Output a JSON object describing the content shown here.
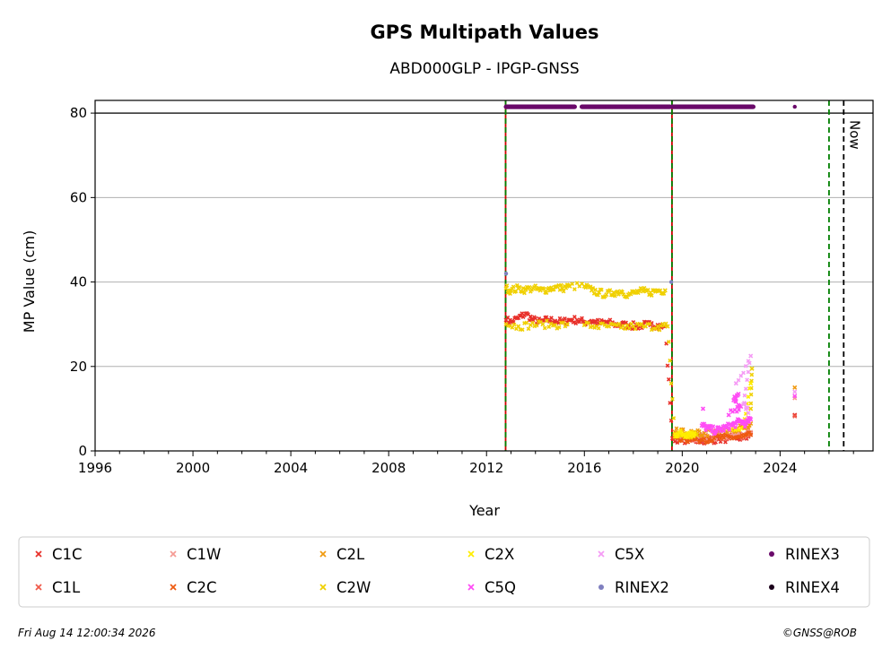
{
  "chart_data": {
    "type": "scatter",
    "title": "GPS Multipath Values",
    "subtitle": "ABD000GLP - IPGP-GNSS",
    "xlabel": "Year",
    "ylabel": "MP Value (cm)",
    "xlim": [
      1996,
      2027.8
    ],
    "ylim": [
      0,
      83
    ],
    "xticks": [
      1996,
      2000,
      2004,
      2008,
      2012,
      2016,
      2020,
      2024
    ],
    "yticks": [
      0,
      20,
      40,
      60,
      80
    ],
    "grid": "y",
    "legend_position": "bottom",
    "series": [
      {
        "name": "C1C",
        "color": "#e8302a",
        "marker": "x",
        "points": [
          [
            2012.8,
            31
          ],
          [
            2013.0,
            30.5
          ],
          [
            2013.3,
            31.5
          ],
          [
            2013.6,
            32.5
          ],
          [
            2013.9,
            31
          ],
          [
            2014.2,
            30.5
          ],
          [
            2014.5,
            31
          ],
          [
            2014.8,
            30.8
          ],
          [
            2015.1,
            30.5
          ],
          [
            2015.4,
            31
          ],
          [
            2015.7,
            31
          ],
          [
            2016.0,
            30.5
          ],
          [
            2016.3,
            30.8
          ],
          [
            2016.6,
            30.2
          ],
          [
            2016.9,
            30.5
          ],
          [
            2017.2,
            30
          ],
          [
            2017.5,
            29.8
          ],
          [
            2017.8,
            29.8
          ],
          [
            2018.1,
            29.5
          ],
          [
            2018.4,
            29.8
          ],
          [
            2018.7,
            29.8
          ],
          [
            2019.0,
            29.8
          ],
          [
            2019.3,
            29.5
          ],
          [
            2019.6,
            3
          ],
          [
            2019.9,
            2.8
          ],
          [
            2020.3,
            2.6
          ],
          [
            2020.7,
            2.5
          ],
          [
            2021.1,
            2.6
          ],
          [
            2021.5,
            2.8
          ],
          [
            2021.9,
            3
          ],
          [
            2022.3,
            3
          ],
          [
            2022.7,
            3.4
          ],
          [
            2024.6,
            8.5
          ]
        ]
      },
      {
        "name": "C1L",
        "color": "#f05a4a",
        "marker": "x",
        "points": [
          [
            2019.7,
            3.2
          ],
          [
            2020.1,
            3
          ],
          [
            2020.5,
            2.9
          ],
          [
            2020.9,
            3
          ],
          [
            2021.3,
            3.1
          ],
          [
            2021.7,
            3.3
          ],
          [
            2022.1,
            3.5
          ],
          [
            2022.5,
            3.8
          ],
          [
            2022.8,
            4.2
          ],
          [
            2024.6,
            8.2
          ]
        ]
      },
      {
        "name": "C1W",
        "color": "#f59b95",
        "marker": "x",
        "points": [
          [
            2019.7,
            3.4
          ],
          [
            2020.1,
            3.3
          ],
          [
            2020.5,
            3.2
          ],
          [
            2020.9,
            3.3
          ],
          [
            2021.3,
            3.4
          ],
          [
            2021.7,
            3.6
          ],
          [
            2022.1,
            3.8
          ],
          [
            2022.5,
            4
          ],
          [
            2022.8,
            4.5
          ],
          [
            2024.6,
            12.5
          ]
        ]
      },
      {
        "name": "C2C",
        "color": "#ee5a10",
        "marker": "x",
        "points": [
          [
            2019.7,
            3.1
          ],
          [
            2020.1,
            2.9
          ],
          [
            2020.5,
            2.8
          ],
          [
            2020.9,
            2.9
          ],
          [
            2021.3,
            3
          ],
          [
            2021.7,
            3.1
          ],
          [
            2022.1,
            3.2
          ],
          [
            2022.5,
            3.4
          ],
          [
            2022.8,
            3.8
          ]
        ]
      },
      {
        "name": "C2L",
        "color": "#f09a10",
        "marker": "x",
        "points": [
          [
            2019.7,
            4.5
          ],
          [
            2020.1,
            4.2
          ],
          [
            2020.5,
            4
          ],
          [
            2020.9,
            4.2
          ],
          [
            2021.3,
            4.4
          ],
          [
            2021.7,
            4.8
          ],
          [
            2022.1,
            5
          ],
          [
            2022.5,
            5.5
          ],
          [
            2022.8,
            6.5
          ],
          [
            2024.6,
            15
          ]
        ]
      },
      {
        "name": "C2W",
        "color": "#f0d000",
        "marker": "x",
        "points": [
          [
            2012.8,
            38.5
          ],
          [
            2013.0,
            38
          ],
          [
            2013.3,
            38.5
          ],
          [
            2013.6,
            38.2
          ],
          [
            2013.9,
            38.5
          ],
          [
            2014.2,
            38
          ],
          [
            2014.5,
            38.3
          ],
          [
            2014.8,
            38.8
          ],
          [
            2015.1,
            38.5
          ],
          [
            2015.4,
            39
          ],
          [
            2016.0,
            39
          ],
          [
            2016.3,
            38
          ],
          [
            2016.6,
            37.5
          ],
          [
            2016.9,
            37
          ],
          [
            2017.2,
            37.5
          ],
          [
            2017.5,
            37.8
          ],
          [
            2017.8,
            37
          ],
          [
            2018.1,
            37.5
          ],
          [
            2018.4,
            37.8
          ],
          [
            2018.7,
            37.5
          ],
          [
            2019.0,
            38
          ],
          [
            2019.3,
            38
          ],
          [
            2012.8,
            30
          ],
          [
            2013.3,
            29.5
          ],
          [
            2013.8,
            29.8
          ],
          [
            2014.3,
            30
          ],
          [
            2014.8,
            29.8
          ],
          [
            2015.3,
            30
          ],
          [
            2016.0,
            29.8
          ],
          [
            2016.5,
            29.5
          ],
          [
            2017.0,
            29.5
          ],
          [
            2017.5,
            29.2
          ],
          [
            2018.0,
            29.5
          ],
          [
            2018.5,
            29.5
          ],
          [
            2019.0,
            29.5
          ],
          [
            2019.4,
            29.5
          ],
          [
            2019.7,
            3.5
          ],
          [
            2020.0,
            3.8
          ],
          [
            2020.3,
            3.5
          ],
          [
            2020.6,
            3.8
          ],
          [
            2022.8,
            10
          ],
          [
            2022.85,
            19.5
          ]
        ]
      },
      {
        "name": "C2X",
        "color": "#ffee00",
        "marker": "x",
        "points": [
          [
            2019.7,
            4
          ],
          [
            2019.9,
            4.2
          ],
          [
            2020.1,
            3.9
          ],
          [
            2020.3,
            4.3
          ],
          [
            2020.5,
            4.1
          ],
          [
            2022.0,
            5
          ],
          [
            2022.5,
            6
          ],
          [
            2022.8,
            16
          ]
        ]
      },
      {
        "name": "C5Q",
        "color": "#ff4df5",
        "marker": "x",
        "points": [
          [
            2020.8,
            6
          ],
          [
            2021.0,
            5.5
          ],
          [
            2021.2,
            5
          ],
          [
            2021.4,
            4.8
          ],
          [
            2021.6,
            5.2
          ],
          [
            2021.8,
            5.5
          ],
          [
            2022.0,
            6
          ],
          [
            2022.2,
            6.5
          ],
          [
            2022.4,
            7
          ],
          [
            2022.6,
            6.5
          ],
          [
            2022.8,
            7.5
          ],
          [
            2020.85,
            10
          ],
          [
            2021.9,
            8.5
          ],
          [
            2022.4,
            10.5
          ],
          [
            2022.1,
            12
          ],
          [
            2022.3,
            13.5
          ],
          [
            2024.6,
            13
          ]
        ]
      },
      {
        "name": "C5X",
        "color": "#f59bf5",
        "marker": "x",
        "points": [
          [
            2022.2,
            16
          ],
          [
            2022.8,
            22.5
          ],
          [
            2022.5,
            11
          ],
          [
            2022.7,
            9
          ],
          [
            2024.6,
            14
          ]
        ]
      },
      {
        "name": "RINEX2",
        "color": "#7f7fbf",
        "marker": "o",
        "points": [
          [
            2012.8,
            42
          ],
          [
            2019.55,
            40
          ]
        ]
      },
      {
        "name": "RINEX3",
        "color": "#6a0a6a",
        "marker": "o",
        "segments": [
          [
            2012.8,
            2015.6
          ],
          [
            2015.9,
            2019.5
          ],
          [
            2019.6,
            2022.9
          ]
        ],
        "y": 81.5,
        "points": [
          [
            2024.6,
            81.5
          ]
        ]
      },
      {
        "name": "RINEX4",
        "color": "#1a001a",
        "marker": "o",
        "points": []
      }
    ],
    "vertical_lines": [
      {
        "x": 2012.78,
        "color": "#cc0000",
        "style": "solid"
      },
      {
        "x": 2012.78,
        "color": "#008000",
        "style": "dashed"
      },
      {
        "x": 2019.58,
        "color": "#cc0000",
        "style": "solid"
      },
      {
        "x": 2019.58,
        "color": "#008000",
        "style": "dashed"
      },
      {
        "x": 2026.0,
        "color": "#008000",
        "style": "dashed"
      },
      {
        "x": 2026.6,
        "color": "#000000",
        "style": "dashed",
        "label": "Now"
      }
    ],
    "horizontal_line": {
      "y": 80,
      "color": "#000000"
    }
  },
  "footer": {
    "timestamp": "Fri Aug 14 12:00:34 2026",
    "credit": "©GNSS@ROB"
  }
}
